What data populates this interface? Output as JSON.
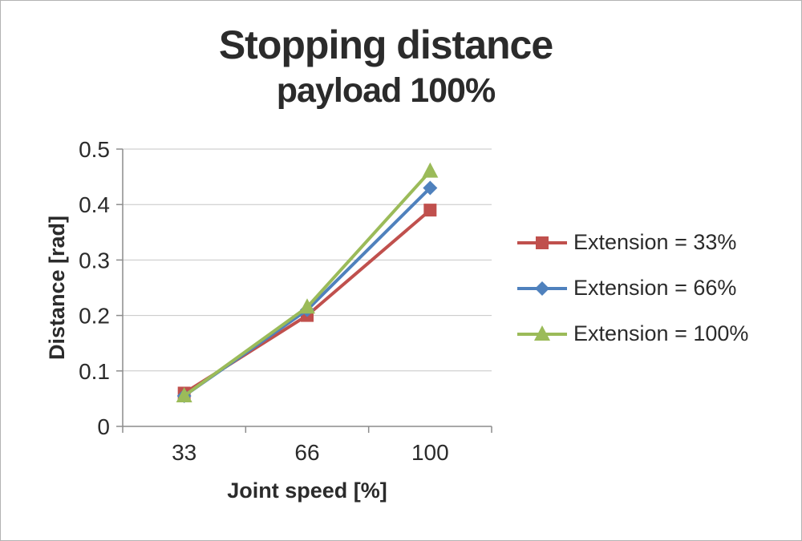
{
  "chart_data": {
    "type": "line",
    "title": "Stopping distance",
    "subtitle": "payload 100%",
    "xlabel": "Joint speed [%]",
    "ylabel": "Distance [rad]",
    "categories": [
      "33",
      "66",
      "100"
    ],
    "ylim": [
      0,
      0.5
    ],
    "ytick_step": 0.1,
    "yticks": [
      "0.5",
      "0.4",
      "0.3",
      "0.2",
      "0.1",
      "0"
    ],
    "grid": true,
    "legend_position": "right",
    "series": [
      {
        "name": "Extension = 33%",
        "marker": "square",
        "color": "#c0504d",
        "values": [
          0.06,
          0.2,
          0.39
        ]
      },
      {
        "name": "Extension = 66%",
        "marker": "diamond",
        "color": "#4f81bd",
        "values": [
          0.055,
          0.21,
          0.43
        ]
      },
      {
        "name": "Extension = 100%",
        "marker": "triangle",
        "color": "#9bbb59",
        "values": [
          0.055,
          0.215,
          0.46
        ]
      }
    ],
    "colors": {
      "gridline": "#c6c6c6",
      "axis": "#8c8c8c",
      "text": "#2b2b2b"
    }
  }
}
